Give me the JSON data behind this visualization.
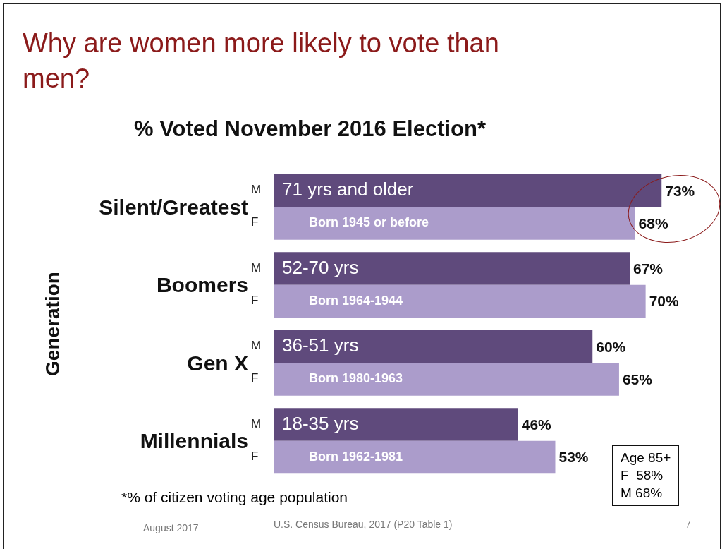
{
  "chart_data": {
    "type": "bar",
    "orientation": "horizontal",
    "title": "Why are women more likely to vote than men?",
    "subtitle": "% Voted November 2016 Election*",
    "ylabel": "Generation",
    "categories": [
      "Silent/Greatest",
      "Boomers",
      "Gen X",
      "Millennials"
    ],
    "series": [
      {
        "name": "M",
        "color": "#5f4a7c",
        "values": [
          73,
          67,
          60,
          46
        ],
        "value_labels": [
          "73%",
          "67%",
          "60%",
          "46%"
        ]
      },
      {
        "name": "F",
        "color": "#ab9ccb",
        "values": [
          68,
          70,
          65,
          53
        ],
        "value_labels": [
          "68%",
          "70%",
          "65%",
          "53%"
        ]
      }
    ],
    "annotations": [
      {
        "text": "71 yrs and older",
        "y": "Silent/Greatest"
      },
      {
        "text": "Born 1945 or before",
        "y": "Silent/Greatest"
      },
      {
        "text": "52-70 yrs",
        "y": "Boomers"
      },
      {
        "text": "Born 1964-1944",
        "y": "Boomers"
      },
      {
        "text": "36-51 yrs",
        "y": "Gen X"
      },
      {
        "text": "Born 1980-1963",
        "y": "Gen X"
      },
      {
        "text": "18-35 yrs",
        "y": "Millennials"
      },
      {
        "text": "Born 1962-1981",
        "y": "Millennials"
      },
      "Age 85+\nF  58%\nM 68%",
      "*% of citizen voting age population",
      "August 2017",
      "U.S. Census Bureau, 2017 (P20 Table 1)",
      "7"
    ],
    "legend": false
  }
}
